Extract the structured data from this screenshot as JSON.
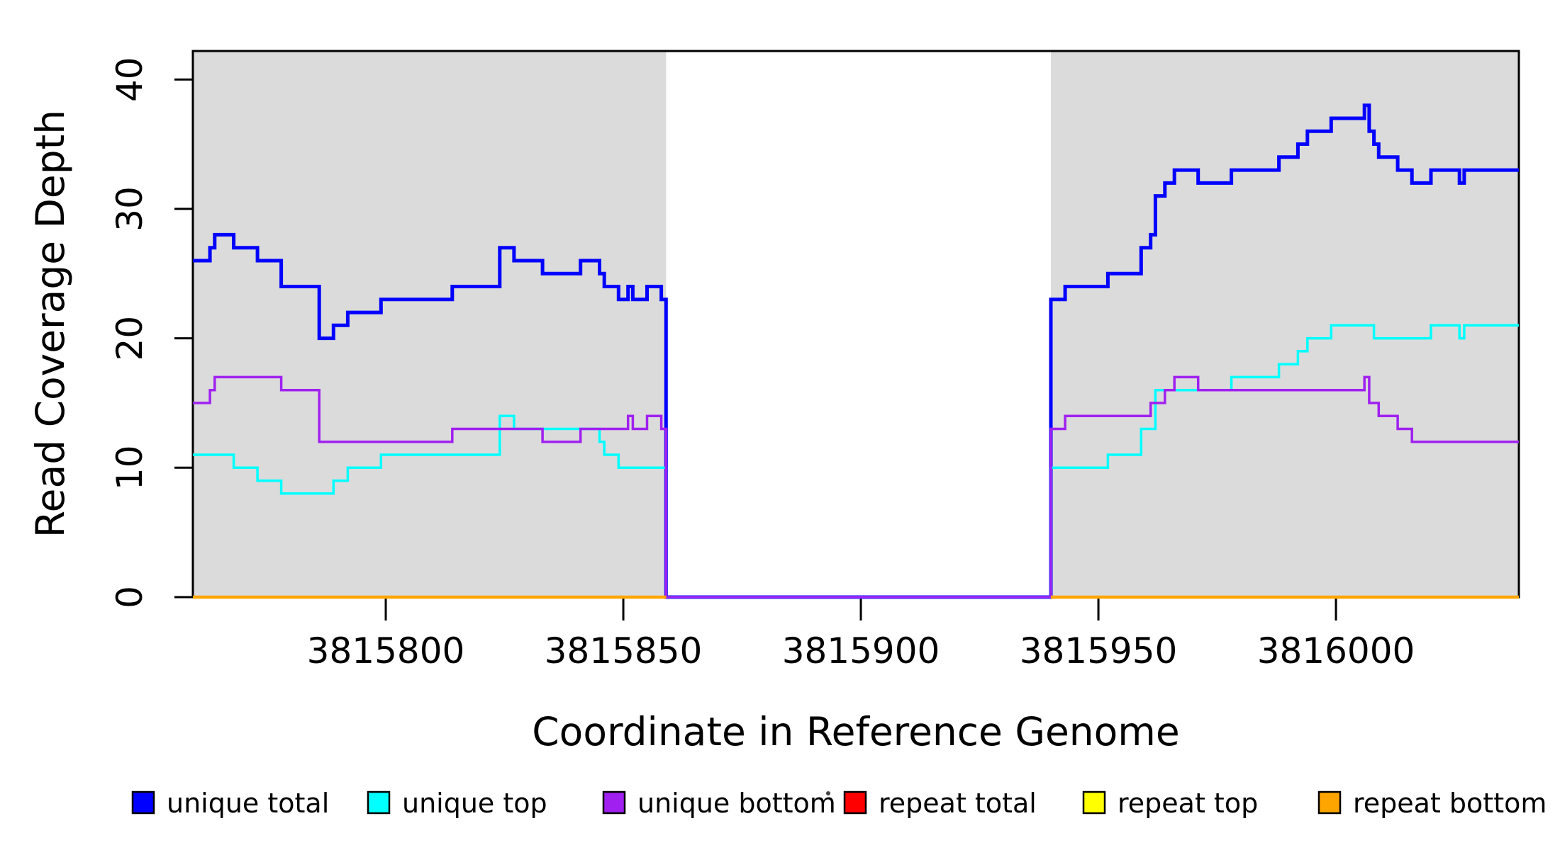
{
  "chart_data": {
    "type": "line",
    "subtype": "step-coverage-plot",
    "title": "",
    "xlabel": "Coordinate in Reference Genome",
    "ylabel": "Read Coverage Depth",
    "xlim": [
      3815759.4,
      3816038.5
    ],
    "ylim": [
      0,
      42.2
    ],
    "x_ticks": [
      3815800,
      3815850,
      3815900,
      3815950,
      3816000
    ],
    "x_tick_labels": [
      "3815800",
      "3815850",
      "3815900",
      "3815950",
      "3816000"
    ],
    "y_ticks": [
      0,
      10,
      20,
      30,
      40
    ],
    "y_tick_labels": [
      "0",
      "10",
      "20",
      "30",
      "40"
    ],
    "grid": false,
    "legend_position": "bottom",
    "shaded_regions": [
      {
        "x0": 3815759.4,
        "x1": 3815859,
        "color": "#DBDBDB"
      },
      {
        "x0": 3815940,
        "x1": 3816038.5,
        "color": "#DBDBDB"
      }
    ],
    "gap_region": {
      "x0": 3815859,
      "x1": 3815940
    },
    "series": [
      {
        "name": "unique total",
        "color": "#0000FF",
        "width": 5,
        "segments": [
          {
            "end": 3816038.5,
            "points": [
              [
                3815759.4,
                26
              ],
              [
                3815763,
                27
              ],
              [
                3815764,
                28
              ],
              [
                3815768,
                27
              ],
              [
                3815773,
                26
              ],
              [
                3815778,
                24
              ],
              [
                3815786,
                20
              ],
              [
                3815789,
                21
              ],
              [
                3815792,
                22
              ],
              [
                3815799,
                23
              ],
              [
                3815814,
                24
              ],
              [
                3815824,
                27
              ],
              [
                3815827,
                26
              ],
              [
                3815833,
                25
              ],
              [
                3815841,
                26
              ],
              [
                3815845,
                25
              ],
              [
                3815846,
                24
              ],
              [
                3815849,
                23
              ],
              [
                3815851,
                24
              ],
              [
                3815852,
                23
              ],
              [
                3815855,
                24
              ],
              [
                3815858,
                23
              ],
              [
                3815859,
                0
              ],
              [
                3815940,
                23
              ],
              [
                3815943,
                24
              ],
              [
                3815952,
                25
              ],
              [
                3815959,
                27
              ],
              [
                3815961,
                28
              ],
              [
                3815962,
                31
              ],
              [
                3815964,
                32
              ],
              [
                3815966,
                33
              ],
              [
                3815971,
                32
              ],
              [
                3815978,
                33
              ],
              [
                3815988,
                34
              ],
              [
                3815992,
                35
              ],
              [
                3815994,
                36
              ],
              [
                3815999,
                37
              ],
              [
                3816006,
                38
              ],
              [
                3816007,
                36
              ],
              [
                3816008,
                35
              ],
              [
                3816009,
                34
              ],
              [
                3816013,
                33
              ],
              [
                3816016,
                32
              ],
              [
                3816020,
                33
              ],
              [
                3816026,
                32
              ],
              [
                3816027,
                33
              ]
            ]
          }
        ]
      },
      {
        "name": "unique top",
        "color": "#00FFFF",
        "width": 3.5,
        "segments": [
          {
            "end": 3816038.5,
            "points": [
              [
                3815759.4,
                11
              ],
              [
                3815768,
                10
              ],
              [
                3815773,
                9
              ],
              [
                3815778,
                8
              ],
              [
                3815789,
                9
              ],
              [
                3815792,
                10
              ],
              [
                3815799,
                11
              ],
              [
                3815824,
                14
              ],
              [
                3815827,
                13
              ],
              [
                3815845,
                12
              ],
              [
                3815846,
                11
              ],
              [
                3815849,
                10
              ],
              [
                3815859,
                0
              ],
              [
                3815940,
                10
              ],
              [
                3815952,
                11
              ],
              [
                3815959,
                13
              ],
              [
                3815962,
                16
              ],
              [
                3815978,
                17
              ],
              [
                3815988,
                18
              ],
              [
                3815992,
                19
              ],
              [
                3815994,
                20
              ],
              [
                3815999,
                21
              ],
              [
                3816008,
                20
              ],
              [
                3816020,
                21
              ],
              [
                3816026,
                20
              ],
              [
                3816027,
                21
              ]
            ]
          }
        ]
      },
      {
        "name": "unique bottom",
        "color": "#A020F0",
        "width": 3.5,
        "segments": [
          {
            "end": 3816038.5,
            "points": [
              [
                3815759.4,
                15
              ],
              [
                3815763,
                16
              ],
              [
                3815764,
                17
              ],
              [
                3815778,
                16
              ],
              [
                3815786,
                12
              ],
              [
                3815814,
                13
              ],
              [
                3815833,
                12
              ],
              [
                3815841,
                13
              ],
              [
                3815851,
                14
              ],
              [
                3815852,
                13
              ],
              [
                3815855,
                14
              ],
              [
                3815858,
                13
              ],
              [
                3815859,
                0
              ],
              [
                3815940,
                13
              ],
              [
                3815943,
                14
              ],
              [
                3815961,
                15
              ],
              [
                3815964,
                16
              ],
              [
                3815966,
                17
              ],
              [
                3815971,
                16
              ],
              [
                3816006,
                17
              ],
              [
                3816007,
                15
              ],
              [
                3816009,
                14
              ],
              [
                3816013,
                13
              ],
              [
                3816016,
                12
              ]
            ]
          }
        ]
      },
      {
        "name": "repeat total",
        "color": "#FF0000",
        "width": 3.5,
        "segments": [
          {
            "end": 3815859,
            "points": [
              [
                3815759.4,
                0
              ]
            ]
          },
          {
            "end": 3816038.5,
            "points": [
              [
                3815940,
                0
              ]
            ]
          }
        ]
      },
      {
        "name": "repeat top",
        "color": "#FFFF00",
        "width": 3.5,
        "segments": [
          {
            "end": 3815859,
            "points": [
              [
                3815759.4,
                0
              ]
            ]
          },
          {
            "end": 3816038.5,
            "points": [
              [
                3815940,
                0
              ]
            ]
          }
        ]
      },
      {
        "name": "repeat bottom",
        "color": "#FFA500",
        "width": 4.5,
        "segments": [
          {
            "end": 3815859,
            "points": [
              [
                3815759.4,
                0
              ]
            ]
          },
          {
            "end": 3816038.5,
            "points": [
              [
                3815940,
                0
              ]
            ]
          }
        ]
      }
    ],
    "legend": [
      {
        "label": "unique total",
        "color": "#0000FF"
      },
      {
        "label": "unique top",
        "color": "#00FFFF"
      },
      {
        "label": "unique bottom",
        "color": "#A020F0"
      },
      {
        "label": "repeat total",
        "color": "#FF0000"
      },
      {
        "label": "repeat top",
        "color": "#FFFF00"
      },
      {
        "label": "repeat bottom",
        "color": "#FFA500"
      }
    ],
    "artifact_dot": {
      "x": 1168,
      "y": 1120,
      "color": "#444444"
    }
  }
}
